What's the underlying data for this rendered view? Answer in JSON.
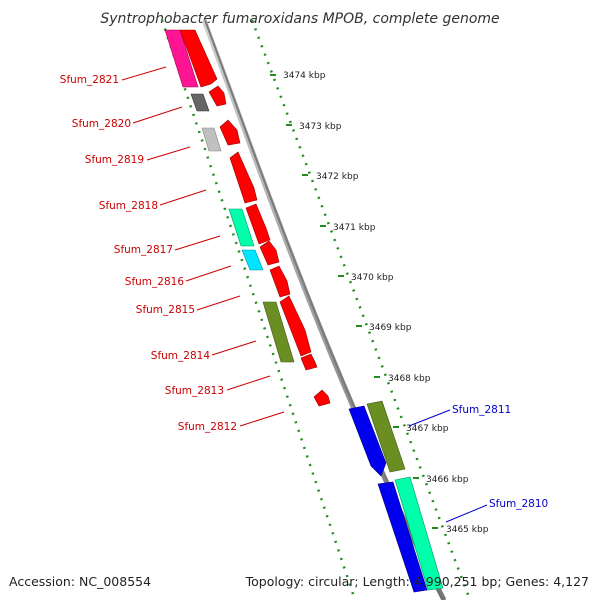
{
  "title": "Syntrophobacter fumaroxidans MPOB, complete genome",
  "footer": {
    "accession": "Accession: NC_008554",
    "topology": "Topology: circular; Length: 4,990,251 bp; Genes: 4,127"
  },
  "ticks": [
    "3474 kbp",
    "3473 kbp",
    "3472 kbp",
    "3471 kbp",
    "3470 kbp",
    "3469 kbp",
    "3468 kbp",
    "3467 kbp",
    "3466 kbp",
    "3465 kbp"
  ],
  "genes_left": [
    "Sfum_2821",
    "Sfum_2820",
    "Sfum_2819",
    "Sfum_2818",
    "Sfum_2817",
    "Sfum_2816",
    "Sfum_2815",
    "Sfum_2814",
    "Sfum_2813",
    "Sfum_2812"
  ],
  "genes_right": [
    "Sfum_2811",
    "Sfum_2810"
  ],
  "colors": {
    "forward": "#ff0000",
    "reverse": "#0000ee",
    "olive": "#6b8e23",
    "aqua": "#00ffaa",
    "magenta": "#ff1493",
    "gray_dark": "#666666",
    "gray_light": "#c0c0c0",
    "cyan": "#00e5ff",
    "label_left": "#cc0000",
    "label_right": "#0000cc"
  }
}
